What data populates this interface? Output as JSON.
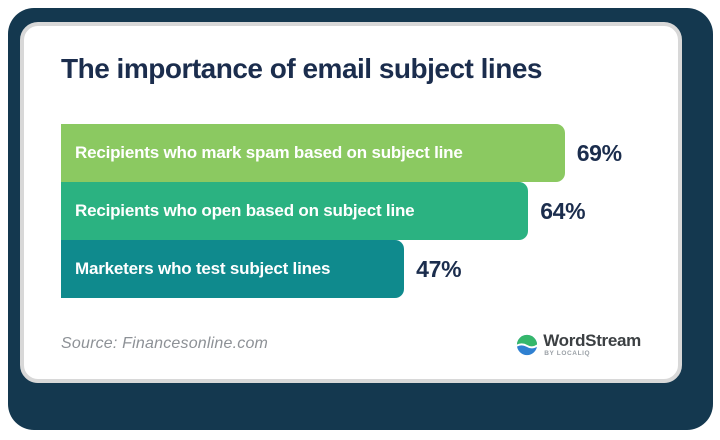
{
  "title": "The importance of email subject lines",
  "chart_data": {
    "type": "bar",
    "orientation": "horizontal",
    "title": "The importance of email subject lines",
    "categories": [
      "Recipients who mark spam based on subject line",
      "Recipients who open based on subject line",
      "Marketers who test subject lines"
    ],
    "values": [
      69,
      64,
      47
    ],
    "value_labels": [
      "69%",
      "64%",
      "47%"
    ],
    "bar_colors": [
      "#8BC961",
      "#2BB281",
      "#0F8A8D"
    ],
    "xlim": [
      0,
      100
    ],
    "grid": false,
    "legend": "none",
    "value_label_position": "outside-right"
  },
  "footer": {
    "source": "Source: Financesonline.com",
    "logo": {
      "brand": "WordStream",
      "byline": "by LOCALiQ",
      "icon": "wave-circle-icon",
      "icon_green": "#35B76B",
      "icon_blue": "#2F80D1"
    }
  },
  "colors": {
    "frame_navy": "#14384F",
    "text_navy": "#1B2D4D",
    "card_border": "#D8D8D8",
    "source_gray": "#8D9196"
  }
}
